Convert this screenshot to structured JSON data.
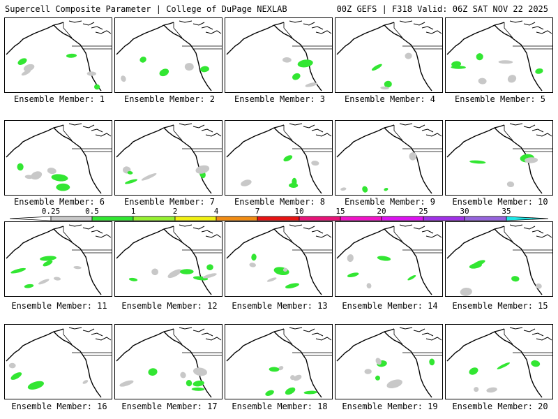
{
  "header": {
    "left": "Supercell Composite Parameter | College of DuPage NEXLAB",
    "right": "00Z GEFS | F318 Valid: 06Z SAT NOV 22 2025"
  },
  "members": [
    {
      "label": "Ensemble Member: 1"
    },
    {
      "label": "Ensemble Member: 2"
    },
    {
      "label": "Ensemble Member: 3"
    },
    {
      "label": "Ensemble Member: 4"
    },
    {
      "label": "Ensemble Member: 5"
    },
    {
      "label": "Ensemble Member: 6"
    },
    {
      "label": "Ensemble Member: 7"
    },
    {
      "label": "Ensemble Member: 8"
    },
    {
      "label": "Ensemble Member: 9"
    },
    {
      "label": "Ensemble Member: 10"
    },
    {
      "label": "Ensemble Member: 11"
    },
    {
      "label": "Ensemble Member: 12"
    },
    {
      "label": "Ensemble Member: 13"
    },
    {
      "label": "Ensemble Member: 14"
    },
    {
      "label": "Ensemble Member: 15"
    },
    {
      "label": "Ensemble Member: 16"
    },
    {
      "label": "Ensemble Member: 17"
    },
    {
      "label": "Ensemble Member: 18"
    },
    {
      "label": "Ensemble Member: 19"
    },
    {
      "label": "Ensemble Member: 20"
    }
  ],
  "colorbar": {
    "ticks": [
      "0.25",
      "0.5",
      "1",
      "2",
      "4",
      "7",
      "10",
      "15",
      "20",
      "25",
      "30",
      "35"
    ],
    "colors": [
      "#c8c8c8",
      "#32e632",
      "#96f032",
      "#f0f014",
      "#f08c14",
      "#e61414",
      "#e61478",
      "#f014c8",
      "#dc14f0",
      "#a032e6",
      "#9664dc",
      "#20e6e6"
    ]
  }
}
